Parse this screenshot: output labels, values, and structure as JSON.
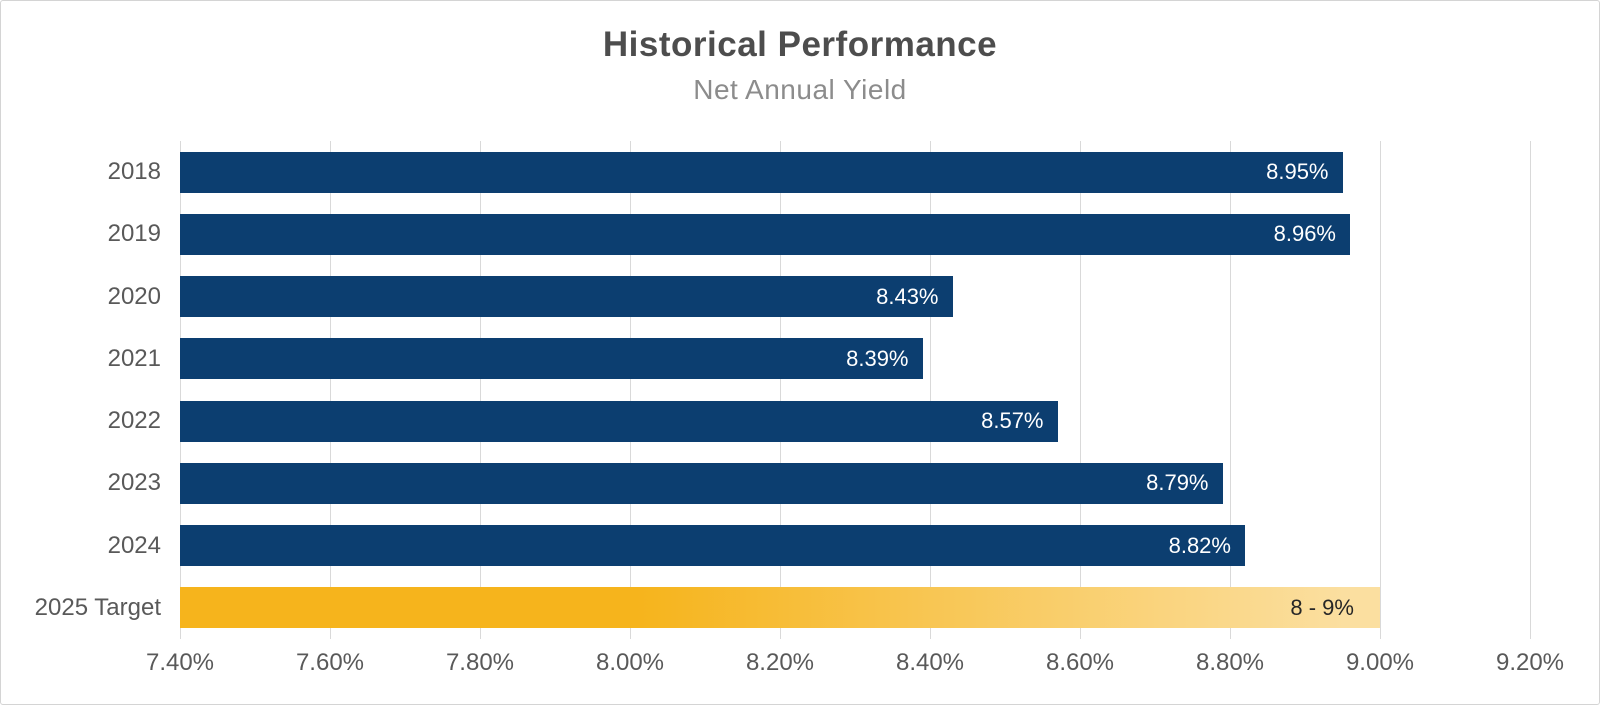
{
  "page": {
    "title": "Historical Performance",
    "subtitle": "Net Annual Yield"
  },
  "chart_data": {
    "type": "bar",
    "orientation": "horizontal",
    "title": "Historical Performance",
    "subtitle": "Net Annual Yield",
    "categories": [
      "2018",
      "2019",
      "2020",
      "2021",
      "2022",
      "2023",
      "2024",
      "2025 Target"
    ],
    "values": [
      8.95,
      8.96,
      8.43,
      8.39,
      8.57,
      8.79,
      8.82,
      9.0
    ],
    "value_labels": [
      "8.95%",
      "8.96%",
      "8.43%",
      "8.39%",
      "8.57%",
      "8.79%",
      "8.82%",
      "8 - 9%"
    ],
    "target_row_index": 7,
    "xlim": [
      7.4,
      9.2
    ],
    "x_ticks": [
      "7.40%",
      "7.60%",
      "7.80%",
      "8.00%",
      "8.20%",
      "8.40%",
      "8.60%",
      "8.80%",
      "9.00%",
      "9.20%"
    ],
    "grid": true,
    "legend": "none",
    "colors": {
      "bar": "#0C3E70",
      "target_bar_start": "#F6B41C",
      "target_bar_end": "#FBDFA0",
      "gridline": "#D9D9D9",
      "title": "#4D4D4D",
      "subtitle": "#8C8C8C",
      "axis_text": "#595959",
      "bar_label": "#FFFFFF",
      "target_label": "#262626"
    }
  }
}
